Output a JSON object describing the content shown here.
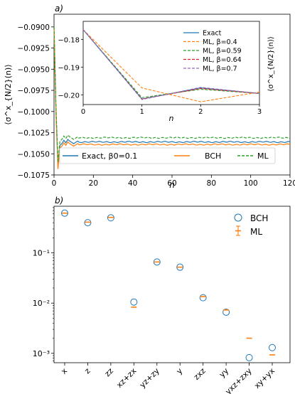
{
  "chart_data": [
    {
      "panel_label": "a)",
      "type": "line",
      "xlabel": "n",
      "ylabel": "⟨σ^x_{N/2}(n)⟩",
      "ylim": [
        -0.1075,
        -0.0885
      ],
      "xlim": [
        0,
        120
      ],
      "yticks": [
        -0.09,
        -0.0925,
        -0.095,
        -0.0975,
        -0.1,
        -0.1025,
        -0.105,
        -0.1075
      ],
      "ytick_labels": [
        "−0.0900",
        "−0.0925",
        "−0.0950",
        "−0.0975",
        "−0.1000",
        "−0.1025",
        "−0.1050",
        "−0.1075"
      ],
      "xticks": [
        0,
        20,
        40,
        60,
        80,
        100,
        120
      ],
      "xtick_labels": [
        "0",
        "20",
        "40",
        "60",
        "80",
        "100",
        "120"
      ],
      "legend": {
        "placement": "lower-center",
        "ncol": 3
      },
      "series": [
        {
          "name": "Exact, β0=0.1",
          "color": "#1f77b4",
          "style": "solid",
          "plateau": -0.1036,
          "transient": [
            [
              0,
              -0.09
            ],
            [
              1,
              -0.1
            ],
            [
              2,
              -0.1065
            ],
            [
              3,
              -0.104
            ],
            [
              4,
              -0.1038
            ],
            [
              5,
              -0.1034
            ],
            [
              6,
              -0.1037
            ],
            [
              7,
              -0.1033
            ],
            [
              8,
              -0.1035
            ],
            [
              10,
              -0.1038
            ],
            [
              12,
              -0.1035
            ]
          ]
        },
        {
          "name": "BCH",
          "color": "#ff7f0e",
          "style": "solid",
          "plateau": -0.1039,
          "transient": [
            [
              0,
              -0.09
            ],
            [
              1,
              -0.1003
            ],
            [
              2,
              -0.1068
            ],
            [
              3,
              -0.1043
            ],
            [
              4,
              -0.1041
            ],
            [
              5,
              -0.1037
            ],
            [
              6,
              -0.104
            ],
            [
              7,
              -0.1036
            ],
            [
              8,
              -0.1038
            ],
            [
              10,
              -0.1041
            ],
            [
              12,
              -0.1038
            ]
          ]
        },
        {
          "name": "ML",
          "color": "#2ca02c",
          "style": "dashed",
          "plateau": -0.1031,
          "transient": [
            [
              0,
              -0.09
            ],
            [
              1,
              -0.0995
            ],
            [
              2,
              -0.106
            ],
            [
              3,
              -0.1035
            ],
            [
              4,
              -0.1033
            ],
            [
              5,
              -0.1029
            ],
            [
              6,
              -0.1032
            ],
            [
              7,
              -0.1028
            ],
            [
              8,
              -0.103
            ],
            [
              10,
              -0.1033
            ],
            [
              12,
              -0.103
            ]
          ]
        }
      ],
      "inset": {
        "xlabel": "n",
        "ylabel": "⟨σ^x_{N/2}(n)⟩",
        "xlim": [
          0,
          3
        ],
        "ylim": [
          -0.2035,
          -0.1735
        ],
        "xticks": [
          0,
          1,
          2,
          3
        ],
        "xtick_labels": [
          "0",
          "1",
          "2",
          "3"
        ],
        "yticks": [
          -0.18,
          -0.19,
          -0.2
        ],
        "ytick_labels": [
          "−0.18",
          "−0.19",
          "−0.20"
        ],
        "legend": {
          "placement": "top-right"
        },
        "x": [
          0,
          1,
          2,
          3
        ],
        "series": [
          {
            "name": "Exact",
            "color": "#1f77b4",
            "style": "solid",
            "values": [
              -0.1765,
              -0.2015,
              -0.1975,
              -0.1995
            ]
          },
          {
            "name": "ML, β=0.4",
            "color": "#ff7f0e",
            "style": "dashed",
            "values": [
              -0.1765,
              -0.1975,
              -0.2025,
              -0.199
            ]
          },
          {
            "name": "ML, β=0.59",
            "color": "#2ca02c",
            "style": "dashed",
            "values": [
              -0.1765,
              -0.201,
              -0.198,
              -0.1995
            ]
          },
          {
            "name": "ML, β=0.64",
            "color": "#d62728",
            "style": "dashed",
            "values": [
              -0.1765,
              -0.2015,
              -0.1977,
              -0.1995
            ]
          },
          {
            "name": "ML, β=0.7",
            "color": "#9467bd",
            "style": "dashed",
            "values": [
              -0.1765,
              -0.2017,
              -0.1973,
              -0.1995
            ]
          }
        ]
      }
    },
    {
      "panel_label": "b)",
      "type": "scatter",
      "yscale": "log",
      "ylim": [
        0.00065,
        0.85
      ],
      "ytick_labels": [
        "10⁻³",
        "10⁻²",
        "10⁻¹"
      ],
      "ytick_values": [
        0.001,
        0.01,
        0.1
      ],
      "categories": [
        "x",
        "z",
        "zz",
        "xz+zx",
        "yz+zy",
        "y",
        "zxz",
        "yy",
        "yxz+zxy",
        "xy+yx"
      ],
      "legend": {
        "placement": "top-right"
      },
      "series": [
        {
          "name": "BCH",
          "color": "#1f77b4",
          "marker": "open-circle",
          "values": [
            0.62,
            0.4,
            0.5,
            0.0105,
            0.066,
            0.052,
            0.0128,
            0.0066,
            0.00082,
            0.0013
          ]
        },
        {
          "name": "ML",
          "color": "#ff7f0e",
          "marker": "errorbar",
          "values": [
            0.62,
            0.41,
            0.51,
            0.0083,
            0.066,
            0.052,
            0.0135,
            0.0073,
            0.002,
            0.00093
          ]
        }
      ]
    }
  ]
}
